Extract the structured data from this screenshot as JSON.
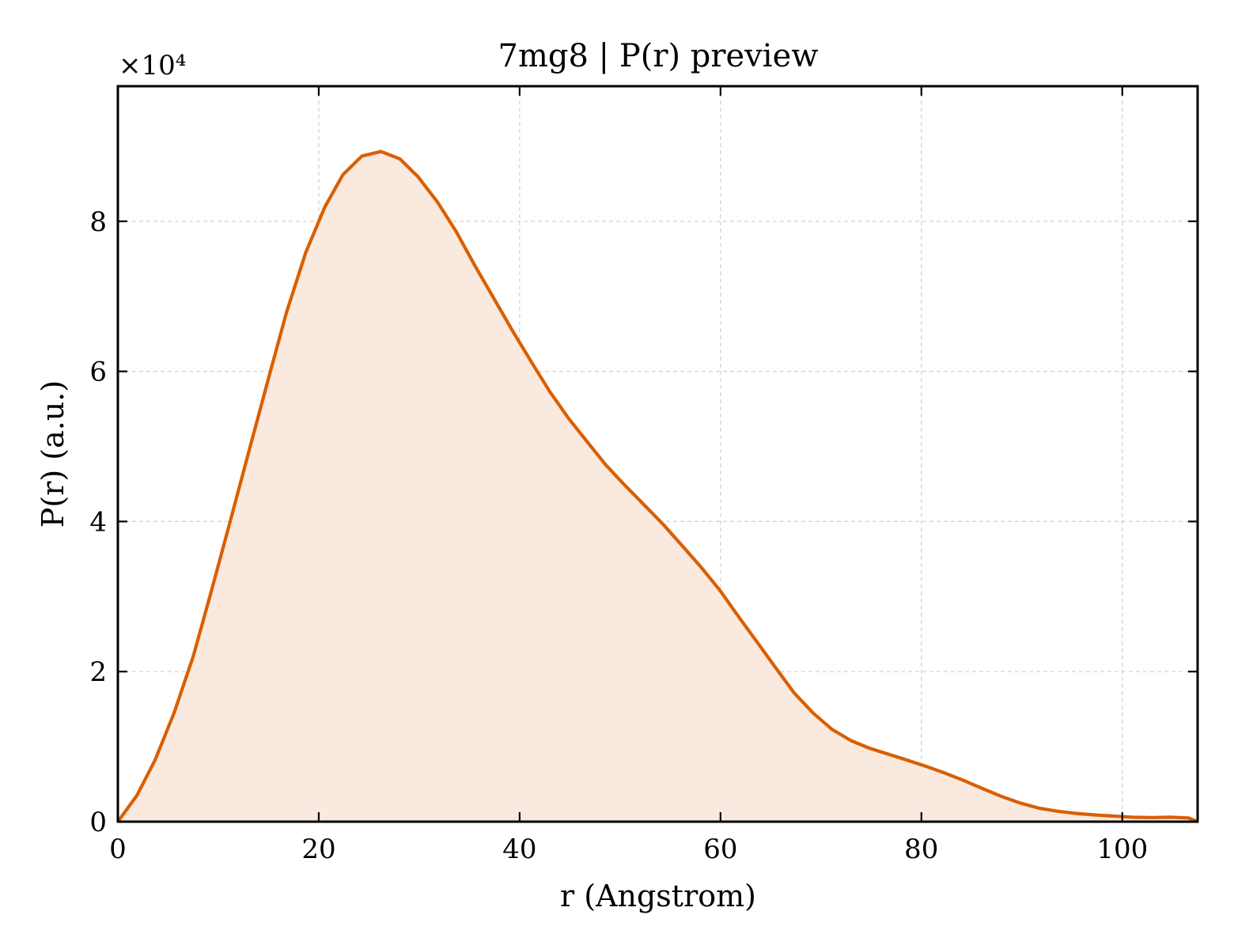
{
  "chart_data": {
    "type": "area",
    "title": "7mg8 | P(r) preview",
    "xlabel": "r (Angstrom)",
    "ylabel": "P(r) (a.u.)",
    "y_multiplier_label": "×10⁴",
    "xlim": [
      0,
      107.5
    ],
    "ylim": [
      0,
      98000
    ],
    "xticks": [
      0,
      20,
      40,
      60,
      80,
      100
    ],
    "xtick_labels": [
      "0",
      "20",
      "40",
      "60",
      "80",
      "100"
    ],
    "yticks": [
      0,
      20000,
      40000,
      60000,
      80000
    ],
    "ytick_labels": [
      "0",
      "2",
      "4",
      "6",
      "8"
    ],
    "grid": true,
    "colors": {
      "line": "#d95f02",
      "fill": "#f9e9de"
    },
    "series": [
      {
        "x": [
          0,
          1.9,
          3.7,
          5.6,
          7.5,
          9.3,
          11.2,
          13.1,
          15.0,
          16.8,
          18.7,
          20.6,
          22.4,
          24.3,
          26.2,
          28.1,
          29.9,
          31.8,
          33.7,
          35.5,
          37.4,
          39.3,
          41.2,
          43.0,
          44.9,
          46.8,
          48.6,
          50.5,
          52.4,
          54.3,
          56.1,
          58.0,
          59.9,
          61.7,
          63.6,
          65.5,
          67.3,
          69.2,
          71.1,
          73.0,
          74.8,
          76.7,
          78.6,
          80.4,
          82.3,
          84.2,
          86.1,
          87.9,
          89.8,
          91.7,
          93.5,
          95.4,
          97.3,
          99.1,
          101.0,
          102.9,
          104.8,
          106.6,
          107.5
        ],
        "y": [
          0,
          3500,
          8200,
          14500,
          22000,
          30700,
          40100,
          49600,
          59100,
          67900,
          75800,
          81900,
          86200,
          88700,
          89300,
          88300,
          85900,
          82600,
          78600,
          74200,
          69800,
          65400,
          61200,
          57300,
          53700,
          50500,
          47500,
          44800,
          42200,
          39600,
          36900,
          34000,
          30900,
          27500,
          24000,
          20500,
          17200,
          14500,
          12300,
          10800,
          9800,
          9000,
          8200,
          7400,
          6500,
          5500,
          4400,
          3400,
          2500,
          1800,
          1400,
          1100,
          900,
          750,
          600,
          550,
          600,
          500,
          0
        ]
      }
    ]
  }
}
